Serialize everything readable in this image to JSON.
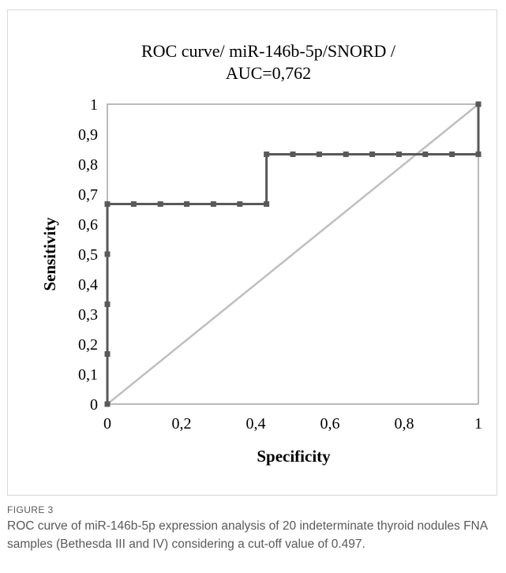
{
  "chart_data": {
    "type": "line",
    "title_line1": "ROC curve/ miR-146b-5p/SNORD /",
    "title_line2": "AUC=0,762",
    "xlabel": "Specificity",
    "ylabel": "Sensitivity",
    "xlim": [
      0,
      1
    ],
    "ylim": [
      0,
      1
    ],
    "x_ticks": [
      "0",
      "0,2",
      "0,4",
      "0,6",
      "0,8",
      "1"
    ],
    "y_ticks": [
      "0",
      "0,1",
      "0,2",
      "0,3",
      "0,4",
      "0,5",
      "0,6",
      "0,7",
      "0,8",
      "0,9",
      "1"
    ],
    "grid": false,
    "series": [
      {
        "color": "#595959",
        "marker": "square",
        "x": [
          0,
          0,
          0,
          0,
          0,
          0.071,
          0.143,
          0.214,
          0.286,
          0.357,
          0.429,
          0.429,
          0.5,
          0.571,
          0.643,
          0.714,
          0.786,
          0.857,
          0.929,
          1,
          1
        ],
        "y": [
          0,
          0.167,
          0.333,
          0.5,
          0.667,
          0.667,
          0.667,
          0.667,
          0.667,
          0.667,
          0.667,
          0.833,
          0.833,
          0.833,
          0.833,
          0.833,
          0.833,
          0.833,
          0.833,
          0.833,
          1
        ]
      },
      {
        "color": "#bfbfbf",
        "marker": "none",
        "x": [
          0,
          1
        ],
        "y": [
          0,
          1
        ]
      }
    ]
  },
  "caption": {
    "label": "FIGURE 3",
    "text": "ROC curve of miR-146b-5p expression analysis of 20 indeterminate thyroid nodules FNA samples (Bethesda III and IV) considering a cut-off value of 0.497."
  }
}
